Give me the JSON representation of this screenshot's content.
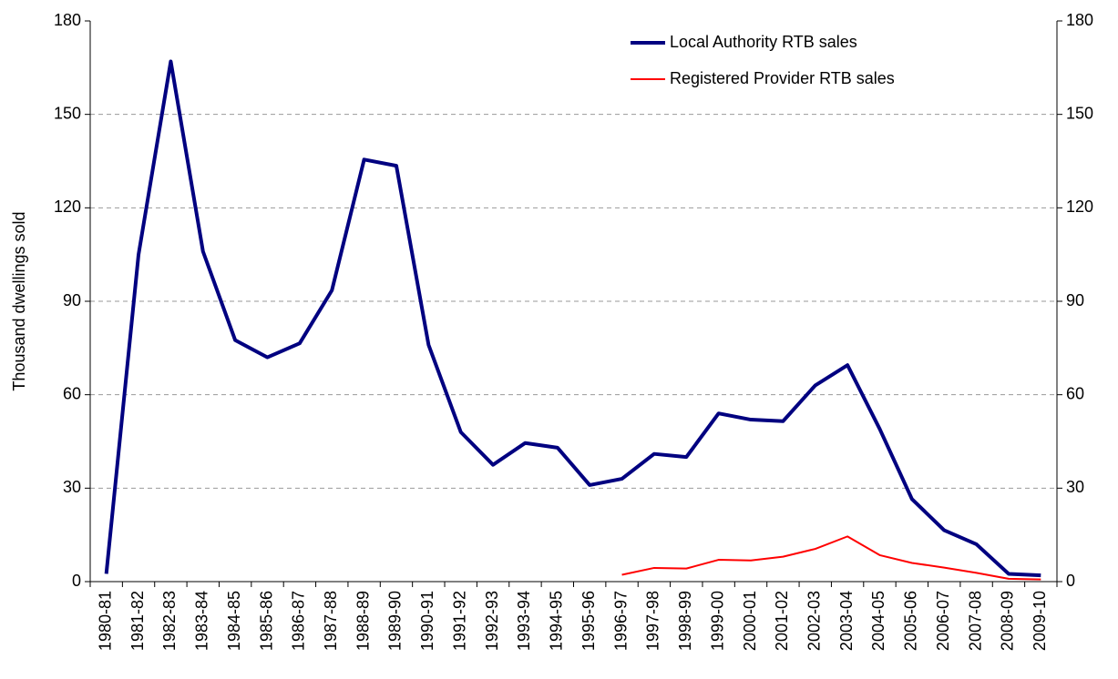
{
  "chart_data": {
    "type": "line",
    "y_label": "Thousand dwellings sold",
    "categories": [
      "1980-81",
      "1981-82",
      "1982-83",
      "1983-84",
      "1984-85",
      "1985-86",
      "1986-87",
      "1987-88",
      "1988-89",
      "1989-90",
      "1990-91",
      "1991-92",
      "1992-93",
      "1993-94",
      "1994-95",
      "1995-96",
      "1996-97",
      "1997-98",
      "1998-99",
      "1999-00",
      "2000-01",
      "2001-02",
      "2002-03",
      "2003-04",
      "2004-05",
      "2005-06",
      "2006-07",
      "2007-08",
      "2008-09",
      "2009-10"
    ],
    "series": [
      {
        "name": "Local Authority RTB sales",
        "color": "#000080",
        "width": 4,
        "values": [
          2.5,
          105,
          167,
          106,
          77.5,
          72,
          76.5,
          93.5,
          135.5,
          133.5,
          76,
          48,
          37.5,
          44.5,
          43,
          31,
          33,
          41,
          40,
          54,
          52,
          51.5,
          63,
          69.5,
          49,
          26.5,
          16.5,
          12,
          2.5,
          2
        ]
      },
      {
        "name": "Registered Provider RTB sales",
        "color": "#ff0000",
        "width": 2,
        "values": [
          null,
          null,
          null,
          null,
          null,
          null,
          null,
          null,
          null,
          null,
          null,
          null,
          null,
          null,
          null,
          null,
          2.2,
          4.4,
          4.2,
          7,
          6.8,
          8,
          10.5,
          14.5,
          8.5,
          6,
          4.5,
          2.8,
          0.9,
          0.7
        ]
      }
    ],
    "ylim": [
      0,
      180
    ],
    "yticks": [
      0,
      30,
      60,
      90,
      120,
      150,
      180
    ],
    "y2lim": [
      0,
      180
    ],
    "y2ticks": [
      0,
      30,
      60,
      90,
      120,
      150,
      180
    ],
    "grid": true,
    "legend": "top-right"
  }
}
